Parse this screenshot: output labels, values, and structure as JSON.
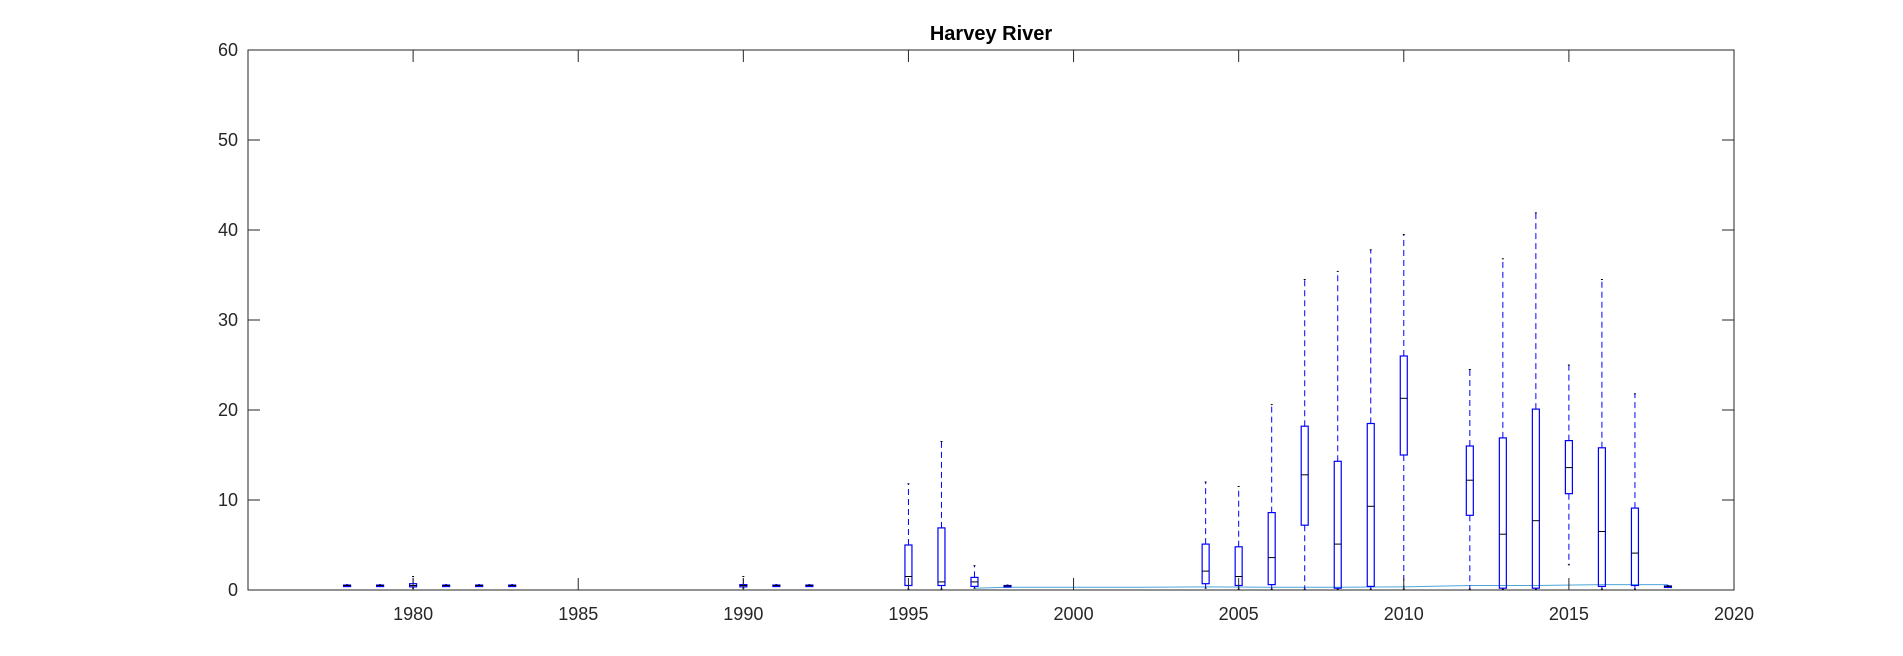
{
  "chart_data": {
    "type": "box",
    "title": "Harvey River",
    "xlabel": "",
    "ylabel": "",
    "xlim": [
      1975,
      2020
    ],
    "ylim": [
      0,
      60
    ],
    "xticks": [
      1980,
      1985,
      1990,
      1995,
      2000,
      2005,
      2010,
      2015,
      2020
    ],
    "yticks": [
      0,
      10,
      20,
      30,
      40,
      50,
      60
    ],
    "grid": false,
    "box_color": "#0000ff",
    "whisker_color": "#0000ff",
    "median_color": "#000000",
    "trend_color": "#4da6d9",
    "boxes": [
      {
        "x": 1978,
        "lower_whisker": 0.4,
        "q1": 0.45,
        "median": 0.5,
        "q3": 0.55,
        "upper_whisker": 0.6
      },
      {
        "x": 1979,
        "lower_whisker": 0.4,
        "q1": 0.45,
        "median": 0.5,
        "q3": 0.55,
        "upper_whisker": 0.6
      },
      {
        "x": 1980,
        "lower_whisker": 0.2,
        "q1": 0.35,
        "median": 0.5,
        "q3": 0.7,
        "upper_whisker": 1.5
      },
      {
        "x": 1981,
        "lower_whisker": 0.4,
        "q1": 0.45,
        "median": 0.5,
        "q3": 0.55,
        "upper_whisker": 0.6
      },
      {
        "x": 1982,
        "lower_whisker": 0.4,
        "q1": 0.45,
        "median": 0.5,
        "q3": 0.55,
        "upper_whisker": 0.6
      },
      {
        "x": 1983,
        "lower_whisker": 0.4,
        "q1": 0.45,
        "median": 0.5,
        "q3": 0.55,
        "upper_whisker": 0.6
      },
      {
        "x": 1990,
        "lower_whisker": 0.2,
        "q1": 0.35,
        "median": 0.5,
        "q3": 0.6,
        "upper_whisker": 1.5
      },
      {
        "x": 1991,
        "lower_whisker": 0.4,
        "q1": 0.45,
        "median": 0.5,
        "q3": 0.55,
        "upper_whisker": 0.6
      },
      {
        "x": 1992,
        "lower_whisker": 0.4,
        "q1": 0.45,
        "median": 0.5,
        "q3": 0.55,
        "upper_whisker": 0.6
      },
      {
        "x": 1995,
        "lower_whisker": 0.1,
        "q1": 0.5,
        "median": 1.5,
        "q3": 5,
        "upper_whisker": 11.8
      },
      {
        "x": 1996,
        "lower_whisker": 0.1,
        "q1": 0.5,
        "median": 0.9,
        "q3": 6.9,
        "upper_whisker": 16.5
      },
      {
        "x": 1997,
        "lower_whisker": 0.2,
        "q1": 0.4,
        "median": 0.9,
        "q3": 1.4,
        "upper_whisker": 2.7
      },
      {
        "x": 1998,
        "lower_whisker": 0.35,
        "q1": 0.4,
        "median": 0.45,
        "q3": 0.5,
        "upper_whisker": 0.55
      },
      {
        "x": 2004,
        "lower_whisker": 0.2,
        "q1": 0.7,
        "median": 2.1,
        "q3": 5.1,
        "upper_whisker": 12
      },
      {
        "x": 2005,
        "lower_whisker": 0.1,
        "q1": 0.5,
        "median": 1.5,
        "q3": 4.8,
        "upper_whisker": 11.5
      },
      {
        "x": 2006,
        "lower_whisker": 0.1,
        "q1": 0.6,
        "median": 3.6,
        "q3": 8.6,
        "upper_whisker": 20.6
      },
      {
        "x": 2007,
        "lower_whisker": 0.1,
        "q1": 7.2,
        "median": 12.8,
        "q3": 18.2,
        "upper_whisker": 34.5
      },
      {
        "x": 2008,
        "lower_whisker": 0.1,
        "q1": 0.2,
        "median": 5.1,
        "q3": 14.3,
        "upper_whisker": 35.4
      },
      {
        "x": 2009,
        "lower_whisker": 0.1,
        "q1": 0.4,
        "median": 9.3,
        "q3": 18.5,
        "upper_whisker": 37.8
      },
      {
        "x": 2010,
        "lower_whisker": 0.1,
        "q1": 15,
        "median": 21.3,
        "q3": 26,
        "upper_whisker": 39.5
      },
      {
        "x": 2012,
        "lower_whisker": 0.1,
        "q1": 8.3,
        "median": 12.2,
        "q3": 16,
        "upper_whisker": 24.5
      },
      {
        "x": 2013,
        "lower_whisker": 0.1,
        "q1": 0.2,
        "median": 6.2,
        "q3": 16.9,
        "upper_whisker": 36.8
      },
      {
        "x": 2014,
        "lower_whisker": 0.1,
        "q1": 0.2,
        "median": 7.7,
        "q3": 20.1,
        "upper_whisker": 41.9
      },
      {
        "x": 2015,
        "lower_whisker": 2.8,
        "q1": 10.7,
        "median": 13.6,
        "q3": 16.6,
        "upper_whisker": 25
      },
      {
        "x": 2016,
        "lower_whisker": 0.1,
        "q1": 0.4,
        "median": 6.5,
        "q3": 15.8,
        "upper_whisker": 34.5
      },
      {
        "x": 2017,
        "lower_whisker": 0.1,
        "q1": 0.5,
        "median": 4.1,
        "q3": 9.1,
        "upper_whisker": 21.8
      },
      {
        "x": 2018,
        "lower_whisker": 0.3,
        "q1": 0.35,
        "median": 0.4,
        "q3": 0.45,
        "upper_whisker": 0.5
      }
    ],
    "trend_line": {
      "x": [
        1997,
        1998,
        2000,
        2002,
        2004,
        2006,
        2008,
        2010,
        2012,
        2014,
        2016,
        2018
      ],
      "y": [
        0.2,
        0.3,
        0.3,
        0.3,
        0.35,
        0.3,
        0.3,
        0.35,
        0.5,
        0.5,
        0.6,
        0.6
      ]
    }
  }
}
